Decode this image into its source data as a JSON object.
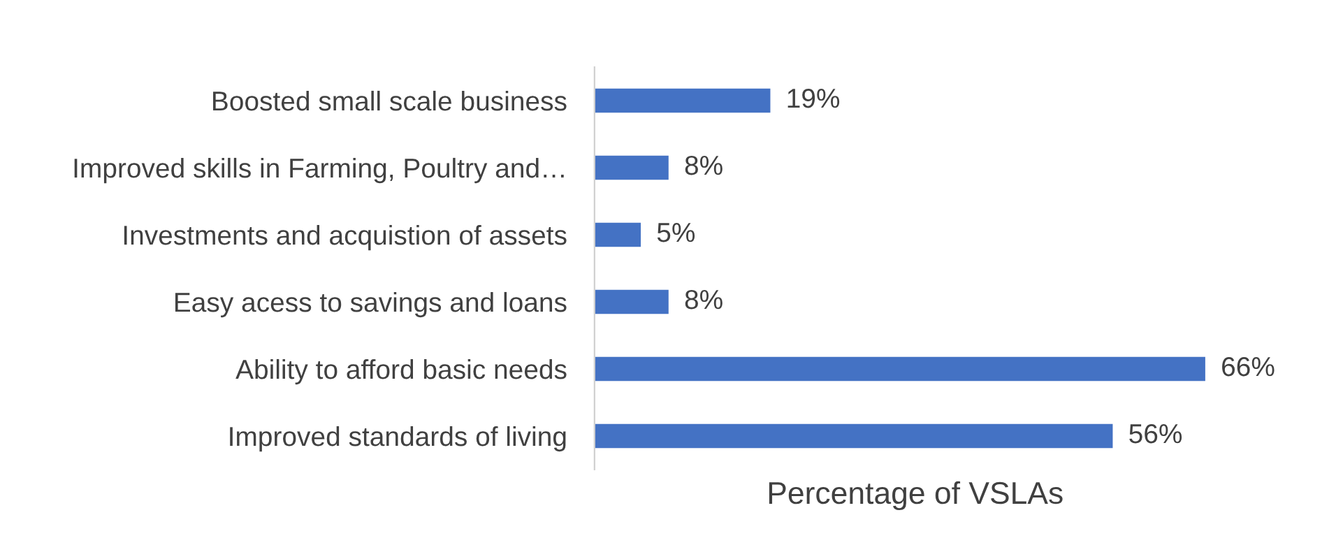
{
  "chart_data": {
    "type": "bar",
    "orientation": "horizontal",
    "xlabel": "Percentage of VSLAs",
    "categories": [
      "Boosted small scale business",
      "Improved skills in Farming, Poultry and…",
      "Investments and acquistion of assets",
      "Easy acess to savings and loans",
      "Ability to afford basic needs",
      "Improved standards of living"
    ],
    "values": [
      19,
      8,
      5,
      8,
      66,
      56
    ],
    "color": "#4472c4",
    "value_labels": [
      "19%",
      "8%",
      "5%",
      "8%",
      "66%",
      "56%"
    ],
    "grid": false,
    "legend": false
  }
}
